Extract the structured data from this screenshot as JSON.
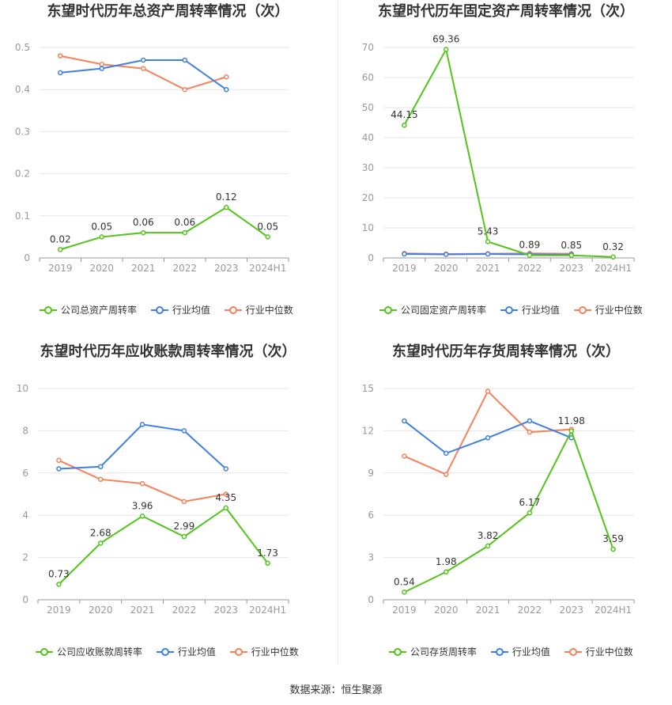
{
  "footer": "数据来源：恒生聚源",
  "legend_common": {
    "avg": "行业均值",
    "median": "行业中位数"
  },
  "colors": {
    "company": "#52c41a",
    "avg": "#3f7fe5",
    "median": "#f5825a",
    "grid": "#e6e6e6",
    "axis": "#999999"
  },
  "chart_data": [
    {
      "type": "line",
      "title": "东望时代历年总资产周转率情况（次）",
      "categories": [
        "2019",
        "2020",
        "2021",
        "2022",
        "2023",
        "2024H1"
      ],
      "ylim": [
        0,
        0.5
      ],
      "yticks": [
        "0",
        "0.1",
        "0.2",
        "0.3",
        "0.4",
        "0.5"
      ],
      "series": [
        {
          "name": "公司总资产周转率",
          "values": [
            0.02,
            0.05,
            0.06,
            0.06,
            0.12,
            0.05
          ],
          "labels": [
            "0.02",
            "0.05",
            "0.06",
            "0.06",
            "0.12",
            "0.05"
          ]
        },
        {
          "name": "行业均值",
          "values": [
            0.44,
            0.45,
            0.47,
            0.47,
            0.4,
            null
          ]
        },
        {
          "name": "行业中位数",
          "values": [
            0.48,
            0.46,
            0.45,
            0.4,
            0.43,
            null
          ]
        }
      ]
    },
    {
      "type": "line",
      "title": "东望时代历年固定资产周转率情况（次）",
      "categories": [
        "2019",
        "2020",
        "2021",
        "2022",
        "2023",
        "2024H1"
      ],
      "ylim": [
        0,
        70
      ],
      "yticks": [
        "0",
        "10",
        "20",
        "30",
        "40",
        "50",
        "60",
        "70"
      ],
      "series": [
        {
          "name": "公司固定资产周转率",
          "values": [
            44.15,
            69.36,
            5.43,
            0.89,
            0.85,
            0.32
          ],
          "labels": [
            "44.15",
            "69.36",
            "5.43",
            "0.89",
            "0.85",
            "0.32"
          ]
        },
        {
          "name": "行业均值",
          "values": [
            1.3,
            1.2,
            1.3,
            1.2,
            1.1,
            null
          ]
        },
        {
          "name": "行业中位数",
          "values": [
            1.5,
            1.3,
            1.4,
            1.5,
            1.4,
            null
          ]
        }
      ]
    },
    {
      "type": "line",
      "title": "东望时代历年应收账款周转率情况（次）",
      "categories": [
        "2019",
        "2020",
        "2021",
        "2022",
        "2023",
        "2024H1"
      ],
      "ylim": [
        0,
        10
      ],
      "yticks": [
        "0",
        "2",
        "4",
        "6",
        "8",
        "10"
      ],
      "series": [
        {
          "name": "公司应收账款周转率",
          "values": [
            0.73,
            2.68,
            3.96,
            2.99,
            4.35,
            1.73
          ],
          "labels": [
            "0.73",
            "2.68",
            "3.96",
            "2.99",
            "4.35",
            "1.73"
          ]
        },
        {
          "name": "行业均值",
          "values": [
            6.2,
            6.3,
            8.3,
            8.0,
            6.2,
            null
          ]
        },
        {
          "name": "行业中位数",
          "values": [
            6.6,
            5.7,
            5.5,
            4.65,
            5.0,
            null
          ]
        }
      ]
    },
    {
      "type": "line",
      "title": "东望时代历年存货周转率情况（次）",
      "categories": [
        "2019",
        "2020",
        "2021",
        "2022",
        "2023",
        "2024H1"
      ],
      "ylim": [
        0,
        15
      ],
      "yticks": [
        "0",
        "3",
        "6",
        "9",
        "12",
        "15"
      ],
      "series": [
        {
          "name": "公司存货周转率",
          "values": [
            0.54,
            1.98,
            3.82,
            6.17,
            11.98,
            3.59
          ],
          "labels": [
            "0.54",
            "1.98",
            "3.82",
            "6.17",
            "11.98",
            "3.59"
          ]
        },
        {
          "name": "行业均值",
          "values": [
            12.7,
            10.4,
            11.5,
            12.7,
            11.5,
            null
          ]
        },
        {
          "name": "行业中位数",
          "values": [
            10.2,
            8.9,
            14.8,
            11.9,
            12.1,
            null
          ]
        }
      ]
    }
  ]
}
